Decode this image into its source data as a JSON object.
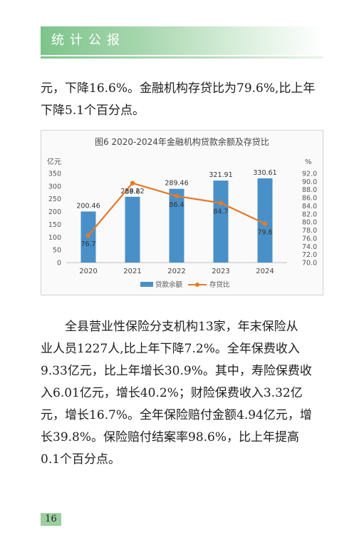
{
  "header": {
    "title": "统计公报"
  },
  "paragraph1": [
    "元，下降16.6%。金融机构存贷比为79.6%,比上年",
    "下降5.1个百分点。"
  ],
  "chart_data": {
    "type": "bar+line",
    "title": "图6 2020-2024年金融机构贷款余额及存贷比",
    "categories": [
      "2020",
      "2021",
      "2022",
      "2023",
      "2024"
    ],
    "y_left": {
      "unit": "亿元",
      "min": 0,
      "max": 350,
      "ticks": [
        "0",
        "50",
        "100",
        "150",
        "200",
        "250",
        "300",
        "350"
      ]
    },
    "y_right": {
      "unit": "%",
      "min": 70.0,
      "max": 92.0,
      "ticks": [
        "70.0",
        "72.0",
        "74.0",
        "76.0",
        "78.0",
        "80.0",
        "82.0",
        "84.0",
        "86.0",
        "88.0",
        "90.0",
        "92.0"
      ]
    },
    "series": [
      {
        "name": "贷款余额",
        "kind": "bar",
        "axis": "left",
        "color": "#4a90c8",
        "values": [
          200.46,
          258.22,
          289.46,
          321.91,
          330.61
        ],
        "labels": [
          "200.46",
          "258.22",
          "289.46",
          "321.91",
          "330.61"
        ]
      },
      {
        "name": "存贷比",
        "kind": "line",
        "axis": "right",
        "color": "#e37a2a",
        "values": [
          76.7,
          89.6,
          86.4,
          84.7,
          79.6
        ],
        "labels": [
          "76.7",
          "89.6",
          "86.4",
          "84.7",
          "79.6"
        ]
      }
    ],
    "legend": "bottom-center",
    "grid": false
  },
  "paragraph2": [
    "全县营业性保险分支机构13家，年末保险从",
    "业人员1227人,比上年下降7.2%。全年保费收入",
    "9.33亿元，比上年增长30.9%。其中，寿险保费收",
    "入6.01亿元，增长40.2%；财险保费收入3.32亿",
    "元，增长16.7%。全年保险赔付金额4.94亿元，增",
    "长39.8%。保险赔付结案率98.6%，比上年提高",
    "0.1个百分点。"
  ],
  "page_number": "16"
}
